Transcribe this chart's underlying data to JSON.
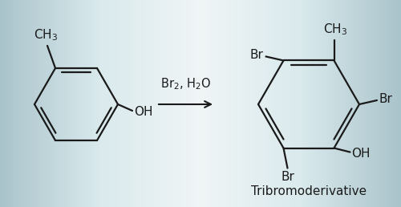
{
  "line_color": "#1a1a1a",
  "text_color": "#1a1a1a",
  "arrow_label": "Br$_2$, H$_2$O",
  "caption": "Tribromoderivative",
  "caption_fontsize": 11,
  "label_fontsize": 10.5,
  "bond_lw": 1.6,
  "figsize": [
    5.0,
    2.58
  ],
  "dpi": 100,
  "bg_left": "#c5d8da",
  "bg_right": "#f0f4f5"
}
